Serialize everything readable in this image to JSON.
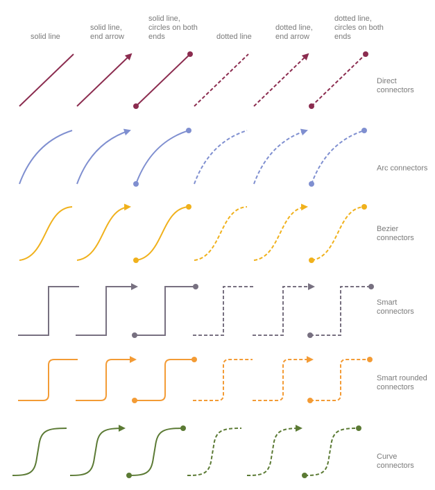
{
  "header": {
    "columns": [
      "solid line",
      "solid line, end arrow",
      "solid line, circles on both ends",
      "dotted line",
      "dotted line, end arrow",
      "dotted line, circles on both ends"
    ]
  },
  "rows": [
    "Direct connectors",
    "Arc connectors",
    "Bezier connectors",
    "Smart connectors",
    "Smart rounded connectors",
    "Curve connectors"
  ]
}
